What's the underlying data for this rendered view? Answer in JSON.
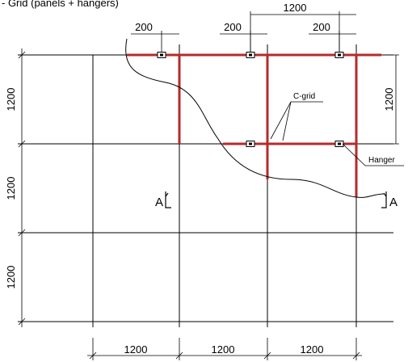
{
  "title": "- Grid (panels + hangers)",
  "dimensions": {
    "top_span": "1200",
    "top_offsets": [
      "200",
      "200",
      "200"
    ],
    "right_side": "1200",
    "left_side": [
      "1200",
      "1200",
      "1200"
    ],
    "bottom": [
      "1200",
      "1200",
      "1200"
    ]
  },
  "labels": {
    "c_grid": "C-grid",
    "hanger": "Hanger",
    "section_left": "A",
    "section_right": "A"
  },
  "colors": {
    "grid_members": "#b52b2b",
    "lines": "#000000"
  }
}
